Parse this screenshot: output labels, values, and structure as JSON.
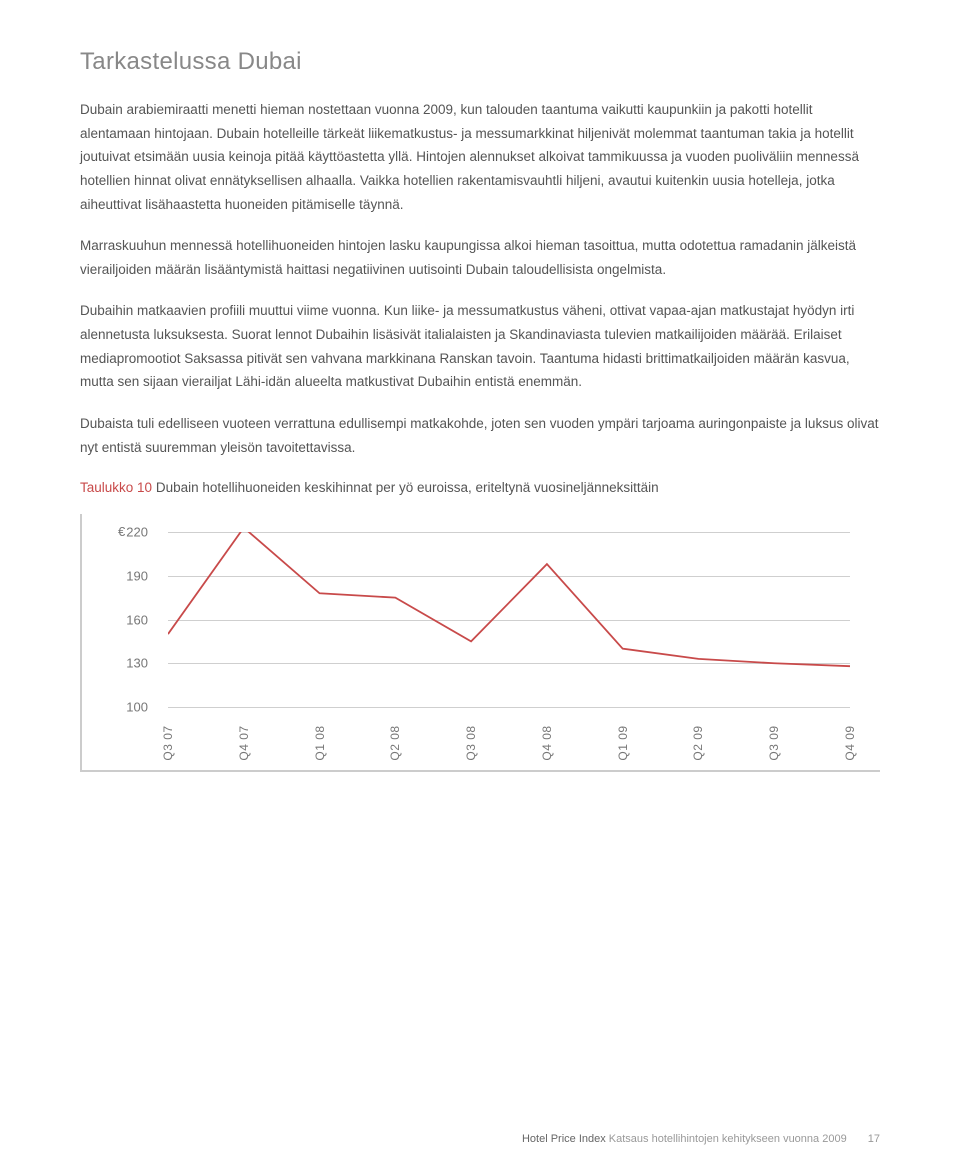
{
  "title": "Tarkastelussa Dubai",
  "paragraphs": [
    "Dubain arabiemiraatti menetti hieman nostettaan vuonna 2009, kun talouden taantuma vaikutti kaupunkiin ja pakotti hotellit alentamaan hintojaan. Dubain hotelleille tärkeät liikematkustus- ja messumarkkinat hiljenivät molemmat taantuman takia ja hotellit joutuivat etsimään uusia keinoja pitää käyttöastetta yllä. Hintojen alennukset alkoivat tammikuussa ja vuoden puoliväliin mennessä hotellien hinnat olivat ennätyksellisen alhaalla. Vaikka hotellien rakentamisvauhtli hiljeni, avautui kuitenkin uusia hotelleja, jotka aiheuttivat lisähaastetta huoneiden pitämiselle täynnä.",
    "Marraskuuhun mennessä hotellihuoneiden hintojen lasku kaupungissa alkoi hieman tasoittua, mutta odotettua ramadanin jälkeistä vierailjoiden määrän lisääntymistä haittasi negatiivinen uutisointi Dubain taloudellisista ongelmista.",
    "Dubaihin matkaavien profiili muuttui viime vuonna. Kun liike- ja messumatkustus väheni, ottivat vapaa-ajan matkustajat hyödyn irti alennetusta luksuksesta. Suorat lennot Dubaihin lisäsivät italialaisten ja Skandinaviasta tulevien matkailijoiden määrää. Erilaiset mediapromootiot Saksassa pitivät sen vahvana markkinana Ranskan tavoin. Taantuma hidasti brittimatkailjoiden määrän kasvua, mutta sen sijaan vierailjat Lähi-idän alueelta matkustivat Dubaihin entistä enemmän.",
    "Dubaista tuli edelliseen vuoteen verrattuna edullisempi matkakohde, joten sen vuoden ympäri tarjoama auringonpaiste ja luksus olivat nyt entistä suuremman yleisön tavoitettavissa."
  ],
  "chart_label_red": "Taulukko 10",
  "chart_label_gray": " Dubain hotellihuoneiden keskihinnat per yö euroissa, eriteltynä vuosineljänneksittäin",
  "chart": {
    "type": "line",
    "euro_symbol": "€",
    "y_ticks": [
      220,
      190,
      160,
      130,
      100
    ],
    "ylim": [
      100,
      220
    ],
    "x_labels": [
      "Q3 07",
      "Q4 07",
      "Q1 08",
      "Q2 08",
      "Q3 08",
      "Q4 08",
      "Q1 09",
      "Q2 09",
      "Q3 09",
      "Q4 09"
    ],
    "values": [
      150,
      223,
      178,
      175,
      145,
      198,
      140,
      133,
      130,
      128
    ],
    "line_color": "#c84a4a",
    "line_width": 1.8,
    "grid_color": "#cfcfcf",
    "background_color": "#ffffff"
  },
  "footer": {
    "bold": "Hotel Price Index",
    "light": " Katsaus hotellihintojen kehitykseen vuonna 2009",
    "page": "17"
  }
}
